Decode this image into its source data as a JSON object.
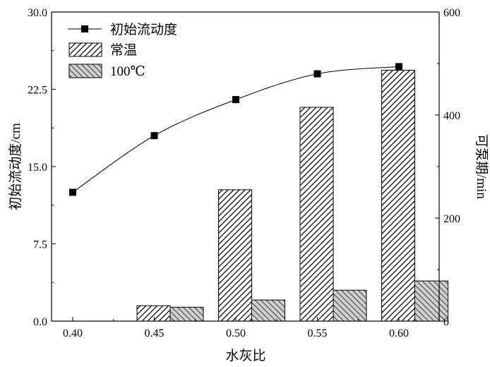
{
  "chart_data": {
    "type": "bar",
    "categories": [
      "0.40",
      "0.45",
      "0.50",
      "0.55",
      "0.60"
    ],
    "xlabel": "水灰比",
    "ylabel_left": "初始流动度/cm",
    "ylabel_right": "可泵期/min",
    "ylim_left": [
      0,
      30
    ],
    "ylim_right": [
      0,
      600
    ],
    "yticks_left": [
      "0.0",
      "7.5",
      "15.0",
      "22.5",
      "30.0"
    ],
    "yticks_right": [
      "0",
      "200",
      "400",
      "600"
    ],
    "series": [
      {
        "name": "初始流动度",
        "kind": "line",
        "axis": "left",
        "marker": "square",
        "color": "#000000",
        "values": [
          12.5,
          18.0,
          21.5,
          24.0,
          24.7
        ]
      },
      {
        "name": "常温",
        "kind": "bar",
        "axis": "right",
        "hatch": "forward-diagonal",
        "values": [
          0,
          30,
          255,
          415,
          487
        ]
      },
      {
        "name": "100℃",
        "kind": "bar",
        "axis": "right",
        "hatch": "backward-diagonal",
        "fill": "#d0d0d0",
        "values": [
          0,
          27,
          41,
          60,
          78
        ]
      }
    ],
    "legend_position": "top-left",
    "grid": false
  }
}
